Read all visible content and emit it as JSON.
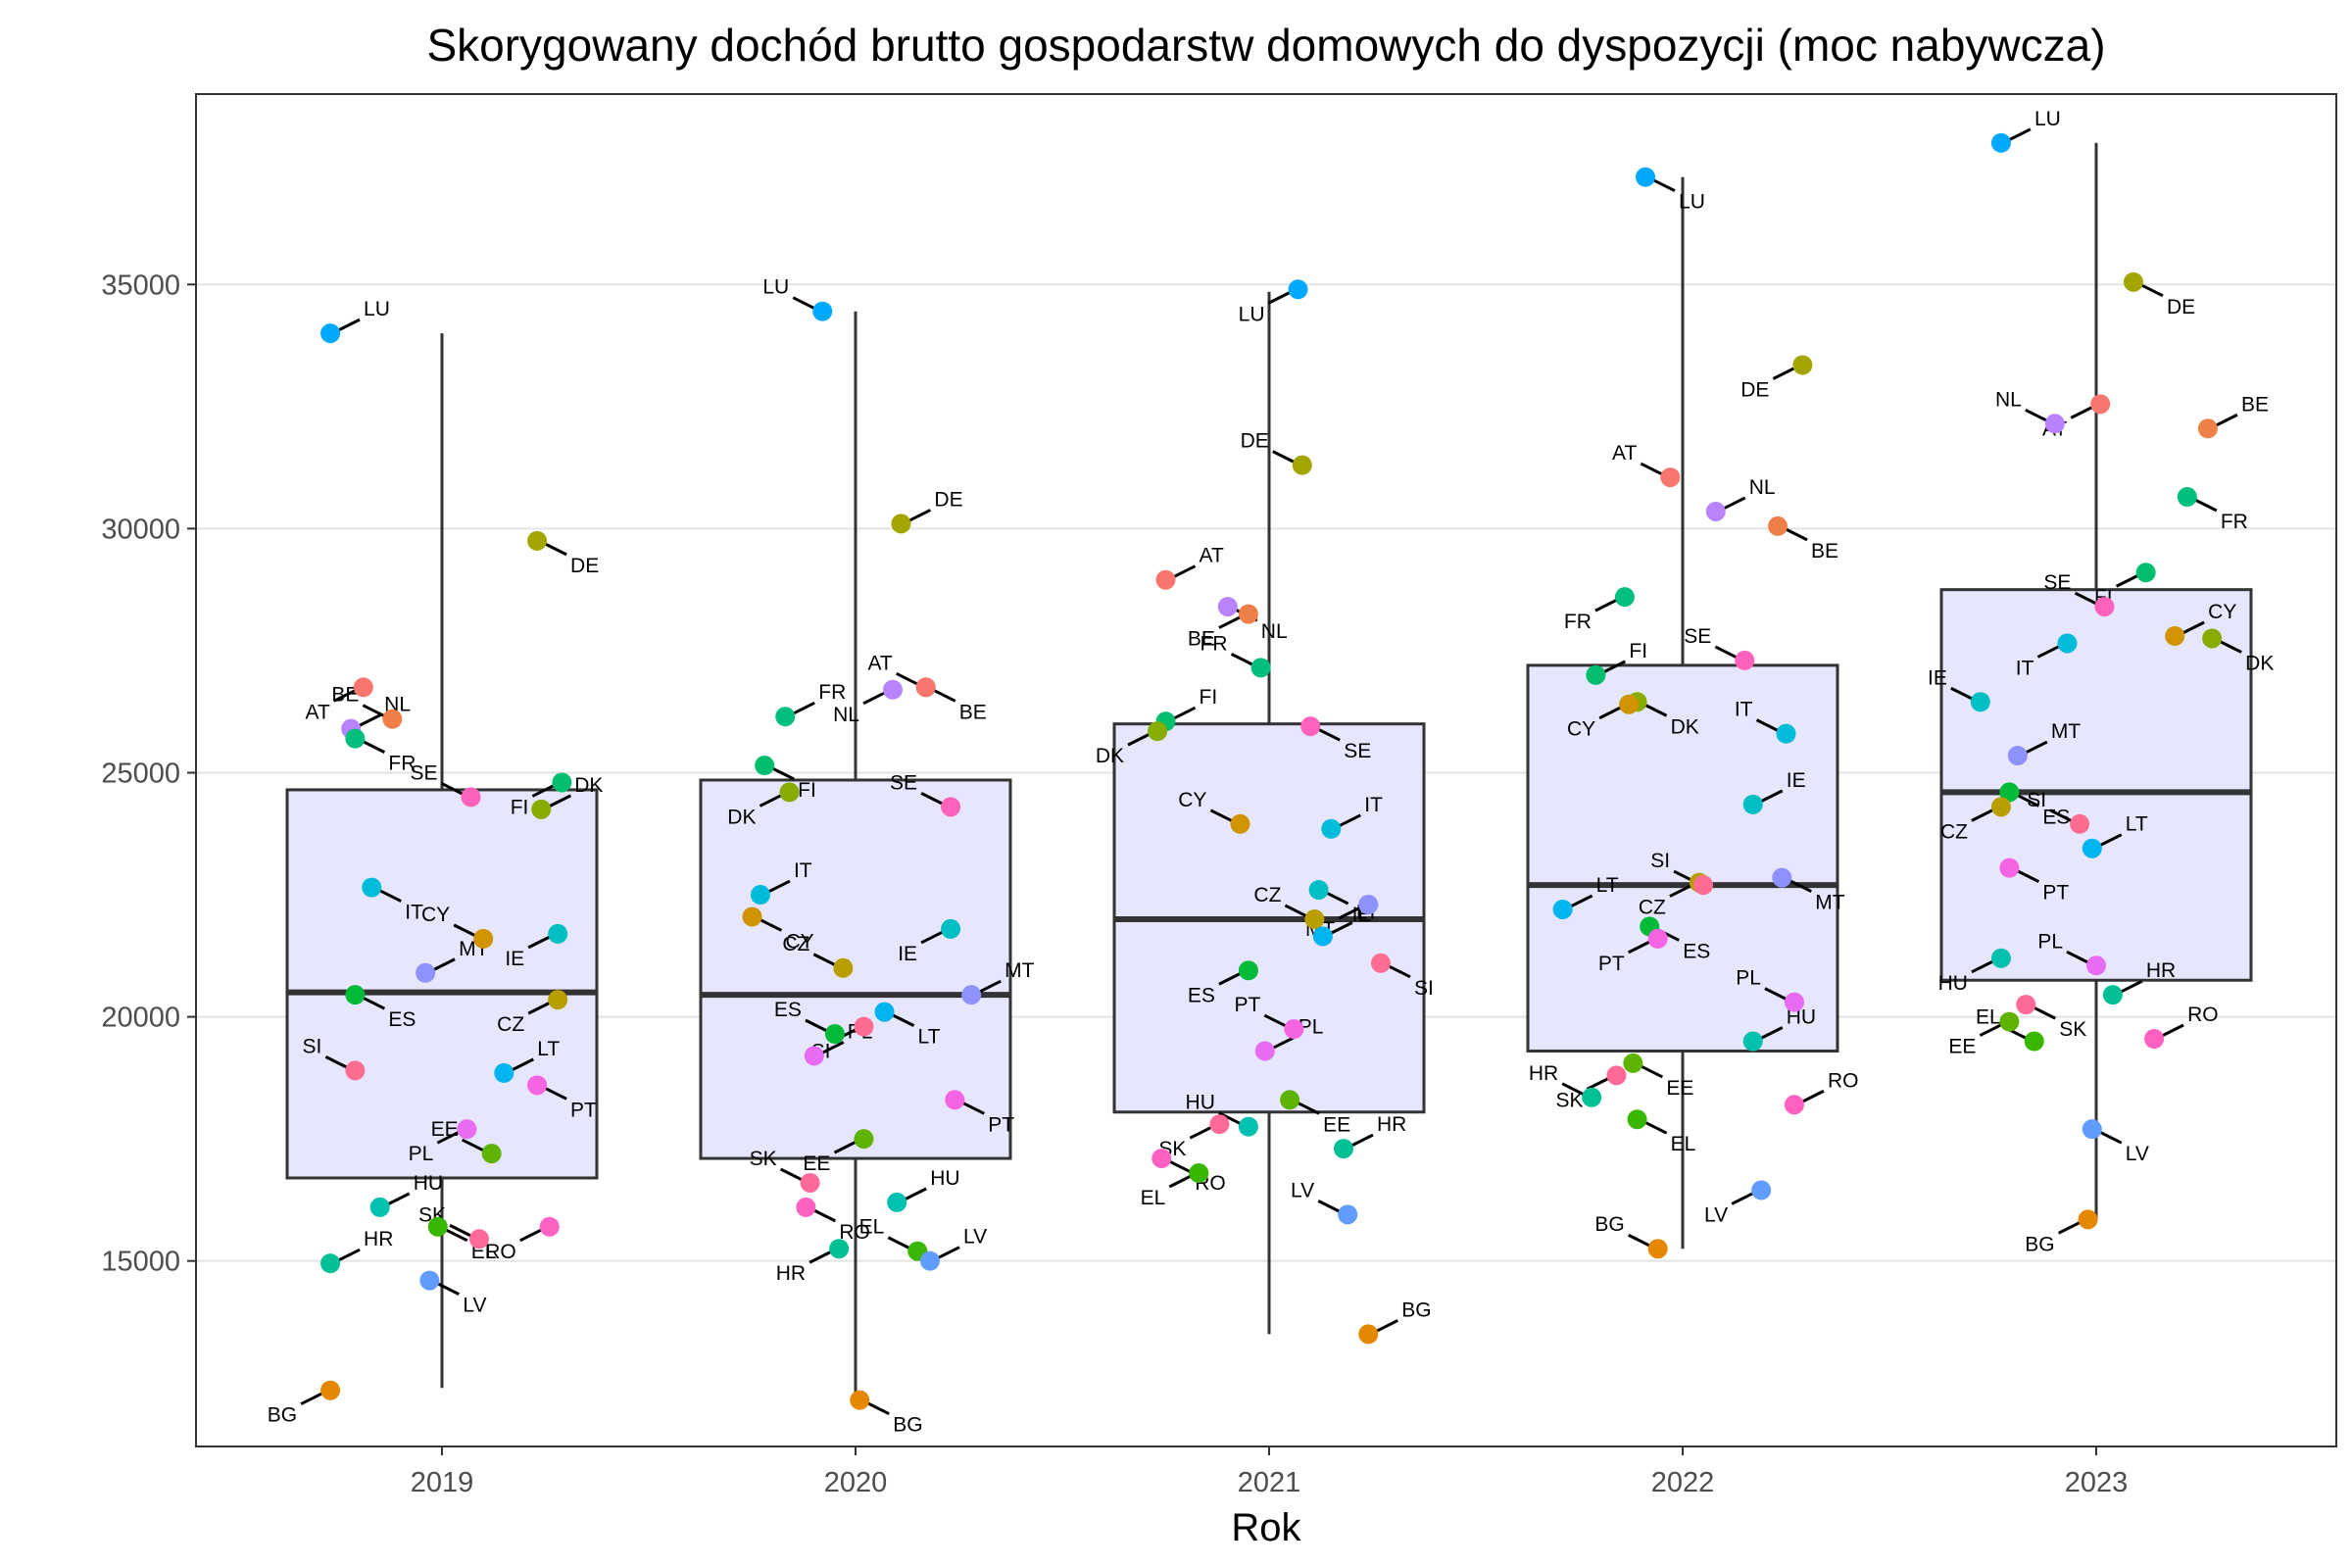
{
  "chart_data": {
    "type": "boxplot",
    "title": "Skorygowany dochód brutto gospodarstw domowych do dyspozycji (moc nabywcza)",
    "xlabel": "Rok",
    "ylabel": "",
    "categories": [
      "2019",
      "2020",
      "2021",
      "2022",
      "2023"
    ],
    "yticks": [
      15000,
      20000,
      25000,
      30000,
      35000
    ],
    "ylim": [
      11200,
      38900
    ],
    "grid": "horizontal",
    "legend": "none",
    "box_fill": "#e6e6ff",
    "box_stroke": "#333333",
    "country_colors": {
      "AT": "#F8766D",
      "BE": "#EF7F49",
      "BG": "#E58700",
      "CY": "#D09400",
      "CZ": "#B99E00",
      "DE": "#A3A500",
      "DK": "#86AC00",
      "EE": "#5DB300",
      "EL": "#39B600",
      "ES": "#00BA38",
      "FI": "#00BE6D",
      "FR": "#00BF7D",
      "HR": "#00C094",
      "HU": "#00C0AF",
      "IE": "#00BFC4",
      "IT": "#00BBDA",
      "LT": "#00B4EF",
      "LU": "#00A9FF",
      "LV": "#619CFF",
      "MT": "#8F91FF",
      "NL": "#B983FF",
      "PL": "#E76BF3",
      "PT": "#F564E3",
      "RO": "#FF61C3",
      "SE": "#FF62BC",
      "SI": "#FF6C91",
      "SK": "#FF6A98"
    },
    "boxes": [
      {
        "year": "2019",
        "whisker_low": 12400,
        "q1": 16700,
        "median": 20500,
        "q3": 24650,
        "whisker_high": 34000
      },
      {
        "year": "2020",
        "whisker_low": 12200,
        "q1": 17100,
        "median": 20450,
        "q3": 24850,
        "whisker_high": 34450
      },
      {
        "year": "2021",
        "whisker_low": 13500,
        "q1": 18050,
        "median": 22000,
        "q3": 26000,
        "whisker_high": 34850
      },
      {
        "year": "2022",
        "whisker_low": 15250,
        "q1": 19300,
        "median": 22700,
        "q3": 27200,
        "whisker_high": 37200
      },
      {
        "year": "2023",
        "whisker_low": 15850,
        "q1": 20750,
        "median": 24600,
        "q3": 28750,
        "whisker_high": 37900
      }
    ],
    "points": [
      {
        "year": "2019",
        "country": "LU",
        "value": 34000,
        "jitter": -0.27
      },
      {
        "year": "2019",
        "country": "DE",
        "value": 29750,
        "jitter": 0.23
      },
      {
        "year": "2019",
        "country": "AT",
        "value": 26750,
        "jitter": -0.19
      },
      {
        "year": "2019",
        "country": "BE",
        "value": 26100,
        "jitter": -0.12
      },
      {
        "year": "2019",
        "country": "NL",
        "value": 25900,
        "jitter": -0.22
      },
      {
        "year": "2019",
        "country": "FR",
        "value": 25700,
        "jitter": -0.21
      },
      {
        "year": "2019",
        "country": "FI",
        "value": 24800,
        "jitter": 0.29
      },
      {
        "year": "2019",
        "country": "SE",
        "value": 24500,
        "jitter": 0.07
      },
      {
        "year": "2019",
        "country": "DK",
        "value": 24250,
        "jitter": 0.24
      },
      {
        "year": "2019",
        "country": "IT",
        "value": 22650,
        "jitter": -0.17
      },
      {
        "year": "2019",
        "country": "IE",
        "value": 21700,
        "jitter": 0.28
      },
      {
        "year": "2019",
        "country": "CY",
        "value": 21600,
        "jitter": 0.1
      },
      {
        "year": "2019",
        "country": "MT",
        "value": 20900,
        "jitter": -0.04
      },
      {
        "year": "2019",
        "country": "ES",
        "value": 20450,
        "jitter": -0.21
      },
      {
        "year": "2019",
        "country": "CZ",
        "value": 20350,
        "jitter": 0.28
      },
      {
        "year": "2019",
        "country": "SI",
        "value": 18900,
        "jitter": -0.21
      },
      {
        "year": "2019",
        "country": "LT",
        "value": 18850,
        "jitter": 0.15
      },
      {
        "year": "2019",
        "country": "PT",
        "value": 18600,
        "jitter": 0.23
      },
      {
        "year": "2019",
        "country": "PL",
        "value": 17700,
        "jitter": 0.06
      },
      {
        "year": "2019",
        "country": "EE",
        "value": 17200,
        "jitter": 0.12
      },
      {
        "year": "2019",
        "country": "HU",
        "value": 16100,
        "jitter": -0.15
      },
      {
        "year": "2019",
        "country": "EL",
        "value": 15700,
        "jitter": -0.01
      },
      {
        "year": "2019",
        "country": "RO",
        "value": 15700,
        "jitter": 0.26
      },
      {
        "year": "2019",
        "country": "SK",
        "value": 15450,
        "jitter": 0.09
      },
      {
        "year": "2019",
        "country": "HR",
        "value": 14950,
        "jitter": -0.27
      },
      {
        "year": "2019",
        "country": "LV",
        "value": 14600,
        "jitter": -0.03
      },
      {
        "year": "2019",
        "country": "BG",
        "value": 12350,
        "jitter": -0.27
      },
      {
        "year": "2020",
        "country": "LU",
        "value": 34450,
        "jitter": -0.08
      },
      {
        "year": "2020",
        "country": "DE",
        "value": 30100,
        "jitter": 0.11
      },
      {
        "year": "2020",
        "country": "BE",
        "value": 26750,
        "jitter": 0.17
      },
      {
        "year": "2020",
        "country": "NL",
        "value": 26700,
        "jitter": 0.09
      },
      {
        "year": "2020",
        "country": "AT",
        "value": 26750,
        "jitter": 0.17
      },
      {
        "year": "2020",
        "country": "FR",
        "value": 26150,
        "jitter": -0.17
      },
      {
        "year": "2020",
        "country": "FI",
        "value": 25150,
        "jitter": -0.22
      },
      {
        "year": "2020",
        "country": "DK",
        "value": 24600,
        "jitter": -0.16
      },
      {
        "year": "2020",
        "country": "SE",
        "value": 24300,
        "jitter": 0.23
      },
      {
        "year": "2020",
        "country": "IT",
        "value": 22500,
        "jitter": -0.23
      },
      {
        "year": "2020",
        "country": "CY",
        "value": 22050,
        "jitter": -0.25
      },
      {
        "year": "2020",
        "country": "IE",
        "value": 21800,
        "jitter": 0.23
      },
      {
        "year": "2020",
        "country": "CZ",
        "value": 21000,
        "jitter": -0.03
      },
      {
        "year": "2020",
        "country": "MT",
        "value": 20450,
        "jitter": 0.28
      },
      {
        "year": "2020",
        "country": "LT",
        "value": 20100,
        "jitter": 0.07
      },
      {
        "year": "2020",
        "country": "SI",
        "value": 19800,
        "jitter": 0.02
      },
      {
        "year": "2020",
        "country": "ES",
        "value": 19650,
        "jitter": -0.05
      },
      {
        "year": "2020",
        "country": "PL",
        "value": 19200,
        "jitter": -0.1
      },
      {
        "year": "2020",
        "country": "PT",
        "value": 18300,
        "jitter": 0.24
      },
      {
        "year": "2020",
        "country": "EE",
        "value": 17500,
        "jitter": 0.02
      },
      {
        "year": "2020",
        "country": "SK",
        "value": 16600,
        "jitter": -0.11
      },
      {
        "year": "2020",
        "country": "HU",
        "value": 16200,
        "jitter": 0.1
      },
      {
        "year": "2020",
        "country": "RO",
        "value": 16100,
        "jitter": -0.12
      },
      {
        "year": "2020",
        "country": "HR",
        "value": 15250,
        "jitter": -0.04
      },
      {
        "year": "2020",
        "country": "EL",
        "value": 15200,
        "jitter": 0.15
      },
      {
        "year": "2020",
        "country": "LV",
        "value": 15000,
        "jitter": 0.18
      },
      {
        "year": "2020",
        "country": "BG",
        "value": 12150,
        "jitter": 0.01
      },
      {
        "year": "2021",
        "country": "LU",
        "value": 34900,
        "jitter": 0.07
      },
      {
        "year": "2021",
        "country": "DE",
        "value": 31300,
        "jitter": 0.08
      },
      {
        "year": "2021",
        "country": "AT",
        "value": 28950,
        "jitter": -0.25
      },
      {
        "year": "2021",
        "country": "NL",
        "value": 28400,
        "jitter": -0.1
      },
      {
        "year": "2021",
        "country": "BE",
        "value": 28250,
        "jitter": -0.05
      },
      {
        "year": "2021",
        "country": "FR",
        "value": 27150,
        "jitter": -0.02
      },
      {
        "year": "2021",
        "country": "FI",
        "value": 26050,
        "jitter": -0.25
      },
      {
        "year": "2021",
        "country": "SE",
        "value": 25950,
        "jitter": 0.1
      },
      {
        "year": "2021",
        "country": "DK",
        "value": 25850,
        "jitter": -0.27
      },
      {
        "year": "2021",
        "country": "CY",
        "value": 23950,
        "jitter": -0.07
      },
      {
        "year": "2021",
        "country": "IT",
        "value": 23850,
        "jitter": 0.15
      },
      {
        "year": "2021",
        "country": "IE",
        "value": 22600,
        "jitter": 0.12
      },
      {
        "year": "2021",
        "country": "MT",
        "value": 22300,
        "jitter": 0.24
      },
      {
        "year": "2021",
        "country": "CZ",
        "value": 22000,
        "jitter": 0.11
      },
      {
        "year": "2021",
        "country": "LT",
        "value": 21650,
        "jitter": 0.13
      },
      {
        "year": "2021",
        "country": "SI",
        "value": 21100,
        "jitter": 0.27
      },
      {
        "year": "2021",
        "country": "ES",
        "value": 20950,
        "jitter": -0.05
      },
      {
        "year": "2021",
        "country": "PT",
        "value": 19750,
        "jitter": 0.06
      },
      {
        "year": "2021",
        "country": "PL",
        "value": 19300,
        "jitter": -0.01
      },
      {
        "year": "2021",
        "country": "EE",
        "value": 18300,
        "jitter": 0.05
      },
      {
        "year": "2021",
        "country": "SK",
        "value": 17800,
        "jitter": -0.12
      },
      {
        "year": "2021",
        "country": "HU",
        "value": 17750,
        "jitter": -0.05
      },
      {
        "year": "2021",
        "country": "HR",
        "value": 17300,
        "jitter": 0.18
      },
      {
        "year": "2021",
        "country": "RO",
        "value": 17100,
        "jitter": -0.26
      },
      {
        "year": "2021",
        "country": "EL",
        "value": 16800,
        "jitter": -0.17
      },
      {
        "year": "2021",
        "country": "LV",
        "value": 15950,
        "jitter": 0.19
      },
      {
        "year": "2021",
        "country": "BG",
        "value": 13500,
        "jitter": 0.24
      },
      {
        "year": "2022",
        "country": "LU",
        "value": 37200,
        "jitter": -0.09
      },
      {
        "year": "2022",
        "country": "DE",
        "value": 33350,
        "jitter": 0.29
      },
      {
        "year": "2022",
        "country": "AT",
        "value": 31050,
        "jitter": -0.03
      },
      {
        "year": "2022",
        "country": "NL",
        "value": 30350,
        "jitter": 0.08
      },
      {
        "year": "2022",
        "country": "BE",
        "value": 30050,
        "jitter": 0.23
      },
      {
        "year": "2022",
        "country": "FR",
        "value": 28600,
        "jitter": -0.14
      },
      {
        "year": "2022",
        "country": "SE",
        "value": 27300,
        "jitter": 0.15
      },
      {
        "year": "2022",
        "country": "FI",
        "value": 27000,
        "jitter": -0.21
      },
      {
        "year": "2022",
        "country": "DK",
        "value": 26450,
        "jitter": -0.11
      },
      {
        "year": "2022",
        "country": "CY",
        "value": 26400,
        "jitter": -0.13
      },
      {
        "year": "2022",
        "country": "IT",
        "value": 25800,
        "jitter": 0.25
      },
      {
        "year": "2022",
        "country": "IE",
        "value": 24350,
        "jitter": 0.17
      },
      {
        "year": "2022",
        "country": "MT",
        "value": 22850,
        "jitter": 0.24
      },
      {
        "year": "2022",
        "country": "CZ",
        "value": 22750,
        "jitter": 0.04
      },
      {
        "year": "2022",
        "country": "SI",
        "value": 22700,
        "jitter": 0.05
      },
      {
        "year": "2022",
        "country": "LT",
        "value": 22200,
        "jitter": -0.29
      },
      {
        "year": "2022",
        "country": "ES",
        "value": 21850,
        "jitter": -0.08
      },
      {
        "year": "2022",
        "country": "PT",
        "value": 21600,
        "jitter": -0.06
      },
      {
        "year": "2022",
        "country": "PL",
        "value": 20300,
        "jitter": 0.27
      },
      {
        "year": "2022",
        "country": "HU",
        "value": 19500,
        "jitter": 0.17
      },
      {
        "year": "2022",
        "country": "EE",
        "value": 19050,
        "jitter": -0.12
      },
      {
        "year": "2022",
        "country": "SK",
        "value": 18800,
        "jitter": -0.16
      },
      {
        "year": "2022",
        "country": "HR",
        "value": 18350,
        "jitter": -0.22
      },
      {
        "year": "2022",
        "country": "RO",
        "value": 18200,
        "jitter": 0.27
      },
      {
        "year": "2022",
        "country": "EL",
        "value": 17900,
        "jitter": -0.11
      },
      {
        "year": "2022",
        "country": "LV",
        "value": 16450,
        "jitter": 0.19
      },
      {
        "year": "2022",
        "country": "BG",
        "value": 15250,
        "jitter": -0.06
      },
      {
        "year": "2023",
        "country": "LU",
        "value": 37900,
        "jitter": -0.23
      },
      {
        "year": "2023",
        "country": "DE",
        "value": 35050,
        "jitter": 0.09
      },
      {
        "year": "2023",
        "country": "AT",
        "value": 32550,
        "jitter": 0.01
      },
      {
        "year": "2023",
        "country": "NL",
        "value": 32150,
        "jitter": -0.1
      },
      {
        "year": "2023",
        "country": "BE",
        "value": 32050,
        "jitter": 0.27
      },
      {
        "year": "2023",
        "country": "FR",
        "value": 30650,
        "jitter": 0.22
      },
      {
        "year": "2023",
        "country": "FI",
        "value": 29100,
        "jitter": 0.12
      },
      {
        "year": "2023",
        "country": "SE",
        "value": 28400,
        "jitter": 0.02
      },
      {
        "year": "2023",
        "country": "CY",
        "value": 27800,
        "jitter": 0.19
      },
      {
        "year": "2023",
        "country": "DK",
        "value": 27750,
        "jitter": 0.28
      },
      {
        "year": "2023",
        "country": "IT",
        "value": 27650,
        "jitter": -0.07
      },
      {
        "year": "2023",
        "country": "IE",
        "value": 26450,
        "jitter": -0.28
      },
      {
        "year": "2023",
        "country": "MT",
        "value": 25350,
        "jitter": -0.19
      },
      {
        "year": "2023",
        "country": "ES",
        "value": 24600,
        "jitter": -0.21
      },
      {
        "year": "2023",
        "country": "CZ",
        "value": 24300,
        "jitter": -0.23
      },
      {
        "year": "2023",
        "country": "SI",
        "value": 23950,
        "jitter": -0.04
      },
      {
        "year": "2023",
        "country": "LT",
        "value": 23450,
        "jitter": -0.01
      },
      {
        "year": "2023",
        "country": "PT",
        "value": 23050,
        "jitter": -0.21
      },
      {
        "year": "2023",
        "country": "HU",
        "value": 21200,
        "jitter": -0.23
      },
      {
        "year": "2023",
        "country": "PL",
        "value": 21050,
        "jitter": 0.0
      },
      {
        "year": "2023",
        "country": "HR",
        "value": 20450,
        "jitter": 0.04
      },
      {
        "year": "2023",
        "country": "SK",
        "value": 20250,
        "jitter": -0.17
      },
      {
        "year": "2023",
        "country": "EE",
        "value": 19900,
        "jitter": -0.21
      },
      {
        "year": "2023",
        "country": "EL",
        "value": 19500,
        "jitter": -0.15
      },
      {
        "year": "2023",
        "country": "RO",
        "value": 19550,
        "jitter": 0.14
      },
      {
        "year": "2023",
        "country": "LV",
        "value": 17700,
        "jitter": -0.01
      },
      {
        "year": "2023",
        "country": "BG",
        "value": 15850,
        "jitter": -0.02
      }
    ]
  }
}
